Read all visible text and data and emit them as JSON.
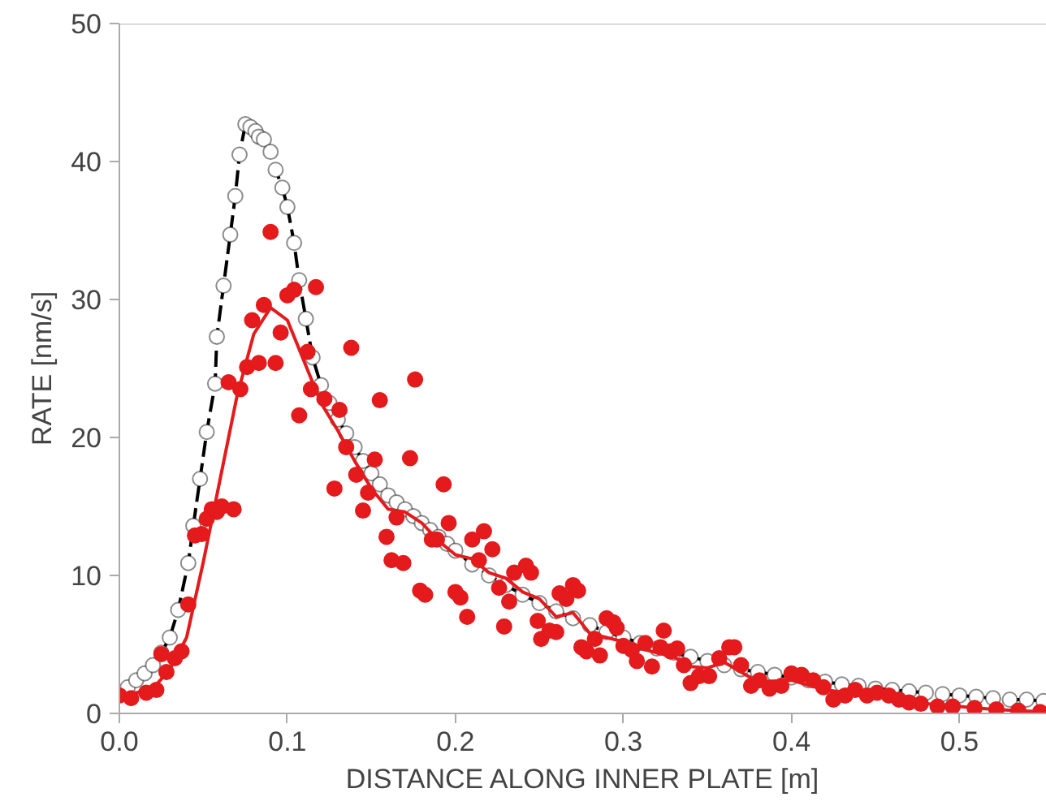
{
  "chart_data": {
    "type": "scatter",
    "xlabel": "DISTANCE ALONG INNER PLATE [m]",
    "ylabel": "RATE [nm/s]",
    "xlim": [
      0,
      0.552
    ],
    "ylim": [
      0,
      50
    ],
    "xticks": [
      {
        "value": 0,
        "label": "0.0"
      },
      0.1,
      0.2,
      0.3,
      0.4,
      0.5
    ],
    "yticks": [
      0,
      10,
      20,
      30,
      40,
      50
    ],
    "grid": false,
    "series": [
      {
        "type": "line",
        "color": "#000000",
        "line_style": "dashed",
        "marker": "circle",
        "x": [
          0.005,
          0.01,
          0.015,
          0.02,
          0.025,
          0.03,
          0.035,
          0.041,
          0.044,
          0.048,
          0.052,
          0.057,
          0.058,
          0.062,
          0.066,
          0.069,
          0.0715,
          0.075,
          0.078,
          0.081,
          0.083,
          0.086,
          0.09,
          0.093,
          0.097,
          0.1,
          0.104,
          0.107,
          0.111,
          0.115,
          0.12,
          0.125,
          0.13,
          0.135,
          0.14,
          0.145,
          0.15,
          0.155,
          0.16,
          0.165,
          0.17,
          0.175,
          0.18,
          0.185,
          0.19,
          0.195,
          0.2,
          0.21,
          0.22,
          0.23,
          0.24,
          0.25,
          0.26,
          0.27,
          0.28,
          0.29,
          0.3,
          0.31,
          0.32,
          0.33,
          0.34,
          0.35,
          0.36,
          0.37,
          0.38,
          0.39,
          0.4,
          0.41,
          0.42,
          0.43,
          0.44,
          0.45,
          0.46,
          0.47,
          0.48,
          0.49,
          0.5,
          0.51,
          0.52,
          0.53,
          0.54,
          0.55
        ],
        "values": [
          1.9,
          2.4,
          2.9,
          3.5,
          4.4,
          5.5,
          7.5,
          10.9,
          13.6,
          17,
          20.4,
          23.9,
          27.3,
          31,
          34.7,
          37.5,
          40.5,
          42.7,
          42.5,
          42.2,
          41.8,
          41.6,
          40.7,
          39.4,
          38.1,
          36.7,
          34.1,
          31.4,
          28.6,
          25.8,
          23.8,
          22.5,
          21.3,
          20.3,
          19.3,
          18.3,
          17.4,
          16.6,
          15.8,
          15.3,
          14.8,
          14.3,
          13.8,
          13.3,
          12.8,
          12.3,
          11.8,
          10.8,
          10,
          9.3,
          8.6,
          8,
          7.4,
          6.9,
          6.4,
          5.9,
          5.5,
          5.1,
          4.7,
          4.4,
          4.1,
          3.8,
          3.5,
          3.2,
          3,
          2.8,
          2.6,
          2.4,
          2.3,
          2.1,
          2,
          1.8,
          1.7,
          1.6,
          1.5,
          1.4,
          1.3,
          1.2,
          1.1,
          1,
          1,
          0.9
        ]
      },
      {
        "color": "#e41a1c",
        "marker": "circle",
        "x": [
          0,
          0.007,
          0.016,
          0.022,
          0.025,
          0.028,
          0.033,
          0.037,
          0.041,
          0.045,
          0.049,
          0.052,
          0.055,
          0.058,
          0.061,
          0.068,
          0.065,
          0.072,
          0.076,
          0.079,
          0.083,
          0.086,
          0.09,
          0.093,
          0.096,
          0.1,
          0.104,
          0.107,
          0.112,
          0.114,
          0.117,
          0.122,
          0.128,
          0.131,
          0.135,
          0.138,
          0.141,
          0.145,
          0.148,
          0.152,
          0.155,
          0.159,
          0.162,
          0.165,
          0.169,
          0.173,
          0.176,
          0.179,
          0.182,
          0.186,
          0.189,
          0.193,
          0.196,
          0.2,
          0.203,
          0.207,
          0.21,
          0.214,
          0.217,
          0.222,
          0.226,
          0.229,
          0.232,
          0.235,
          0.242,
          0.245,
          0.249,
          0.251,
          0.256,
          0.26,
          0.262,
          0.266,
          0.27,
          0.273,
          0.275,
          0.278,
          0.283,
          0.286,
          0.29,
          0.294,
          0.296,
          0.3,
          0.305,
          0.308,
          0.313,
          0.317,
          0.322,
          0.324,
          0.328,
          0.332,
          0.336,
          0.34,
          0.345,
          0.351,
          0.357,
          0.363,
          0.366,
          0.37,
          0.376,
          0.381,
          0.387,
          0.394,
          0.4,
          0.406,
          0.413,
          0.419,
          0.425,
          0.432,
          0.438,
          0.445,
          0.451,
          0.458,
          0.464,
          0.47,
          0.477,
          0.487,
          0.496,
          0.509,
          0.522,
          0.535,
          0.548
        ],
        "values": [
          1.3,
          1.1,
          1.5,
          1.7,
          4.3,
          3,
          4,
          4.5,
          7.9,
          12.9,
          13,
          14.1,
          14.8,
          14.6,
          15,
          14.8,
          24,
          23.5,
          25.1,
          28.5,
          25.4,
          29.6,
          34.9,
          25.4,
          27.6,
          30.3,
          30.7,
          21.6,
          26.2,
          23.5,
          30.9,
          22.8,
          16.3,
          22,
          19.3,
          26.5,
          17.3,
          14.7,
          16,
          18.4,
          22.7,
          12.8,
          11.1,
          14.2,
          10.9,
          18.5,
          24.2,
          8.9,
          8.6,
          12.6,
          12.6,
          16.6,
          13.8,
          8.8,
          8.4,
          7,
          12.6,
          11.1,
          13.2,
          11.9,
          9.1,
          6.3,
          8.1,
          10.2,
          10.7,
          10.2,
          6.7,
          5.4,
          6,
          5.9,
          8.7,
          8.3,
          9.3,
          8.9,
          4.8,
          4.5,
          5.4,
          4.2,
          6.9,
          6.6,
          6.2,
          4.9,
          4.6,
          3.8,
          5.1,
          3.4,
          4.8,
          6,
          4.5,
          4.7,
          3.5,
          2.2,
          2.7,
          2.7,
          4,
          4.8,
          4.8,
          3.5,
          2,
          2.4,
          1.8,
          2,
          2.9,
          2.8,
          2.4,
          1.9,
          1,
          1.3,
          1.7,
          1.3,
          1.5,
          1.3,
          1,
          0.8,
          0.7,
          0.5,
          0.5,
          0.4,
          0.3,
          0.2,
          0.1
        ]
      },
      {
        "type": "line",
        "color": "#e41a1c",
        "line_style": "solid",
        "marker": "none",
        "x": [
          0,
          0.02,
          0.03,
          0.04,
          0.05,
          0.06,
          0.07,
          0.08,
          0.09,
          0.1,
          0.11,
          0.12,
          0.13,
          0.14,
          0.15,
          0.16,
          0.17,
          0.18,
          0.19,
          0.2,
          0.21,
          0.22,
          0.23,
          0.24,
          0.25,
          0.26,
          0.27,
          0.28,
          0.29,
          0.3,
          0.31,
          0.32,
          0.33,
          0.34,
          0.35,
          0.36,
          0.37,
          0.38,
          0.4,
          0.42,
          0.44,
          0.46,
          0.48,
          0.5,
          0.52,
          0.55
        ],
        "values": [
          1.2,
          1.8,
          3.2,
          5.5,
          11,
          17,
          23,
          27.5,
          29.4,
          28.5,
          25.5,
          22.5,
          20.5,
          18.3,
          16.3,
          14.8,
          14.6,
          13.8,
          12.5,
          11.5,
          11.2,
          10.2,
          9.8,
          8.8,
          8.3,
          7,
          7.3,
          5.8,
          5.5,
          5.2,
          4.7,
          4.4,
          4.1,
          3.4,
          3.3,
          3.7,
          3,
          2.3,
          2.4,
          1.7,
          1.4,
          1.2,
          0.7,
          0.5,
          0.3,
          0.1
        ]
      }
    ]
  }
}
